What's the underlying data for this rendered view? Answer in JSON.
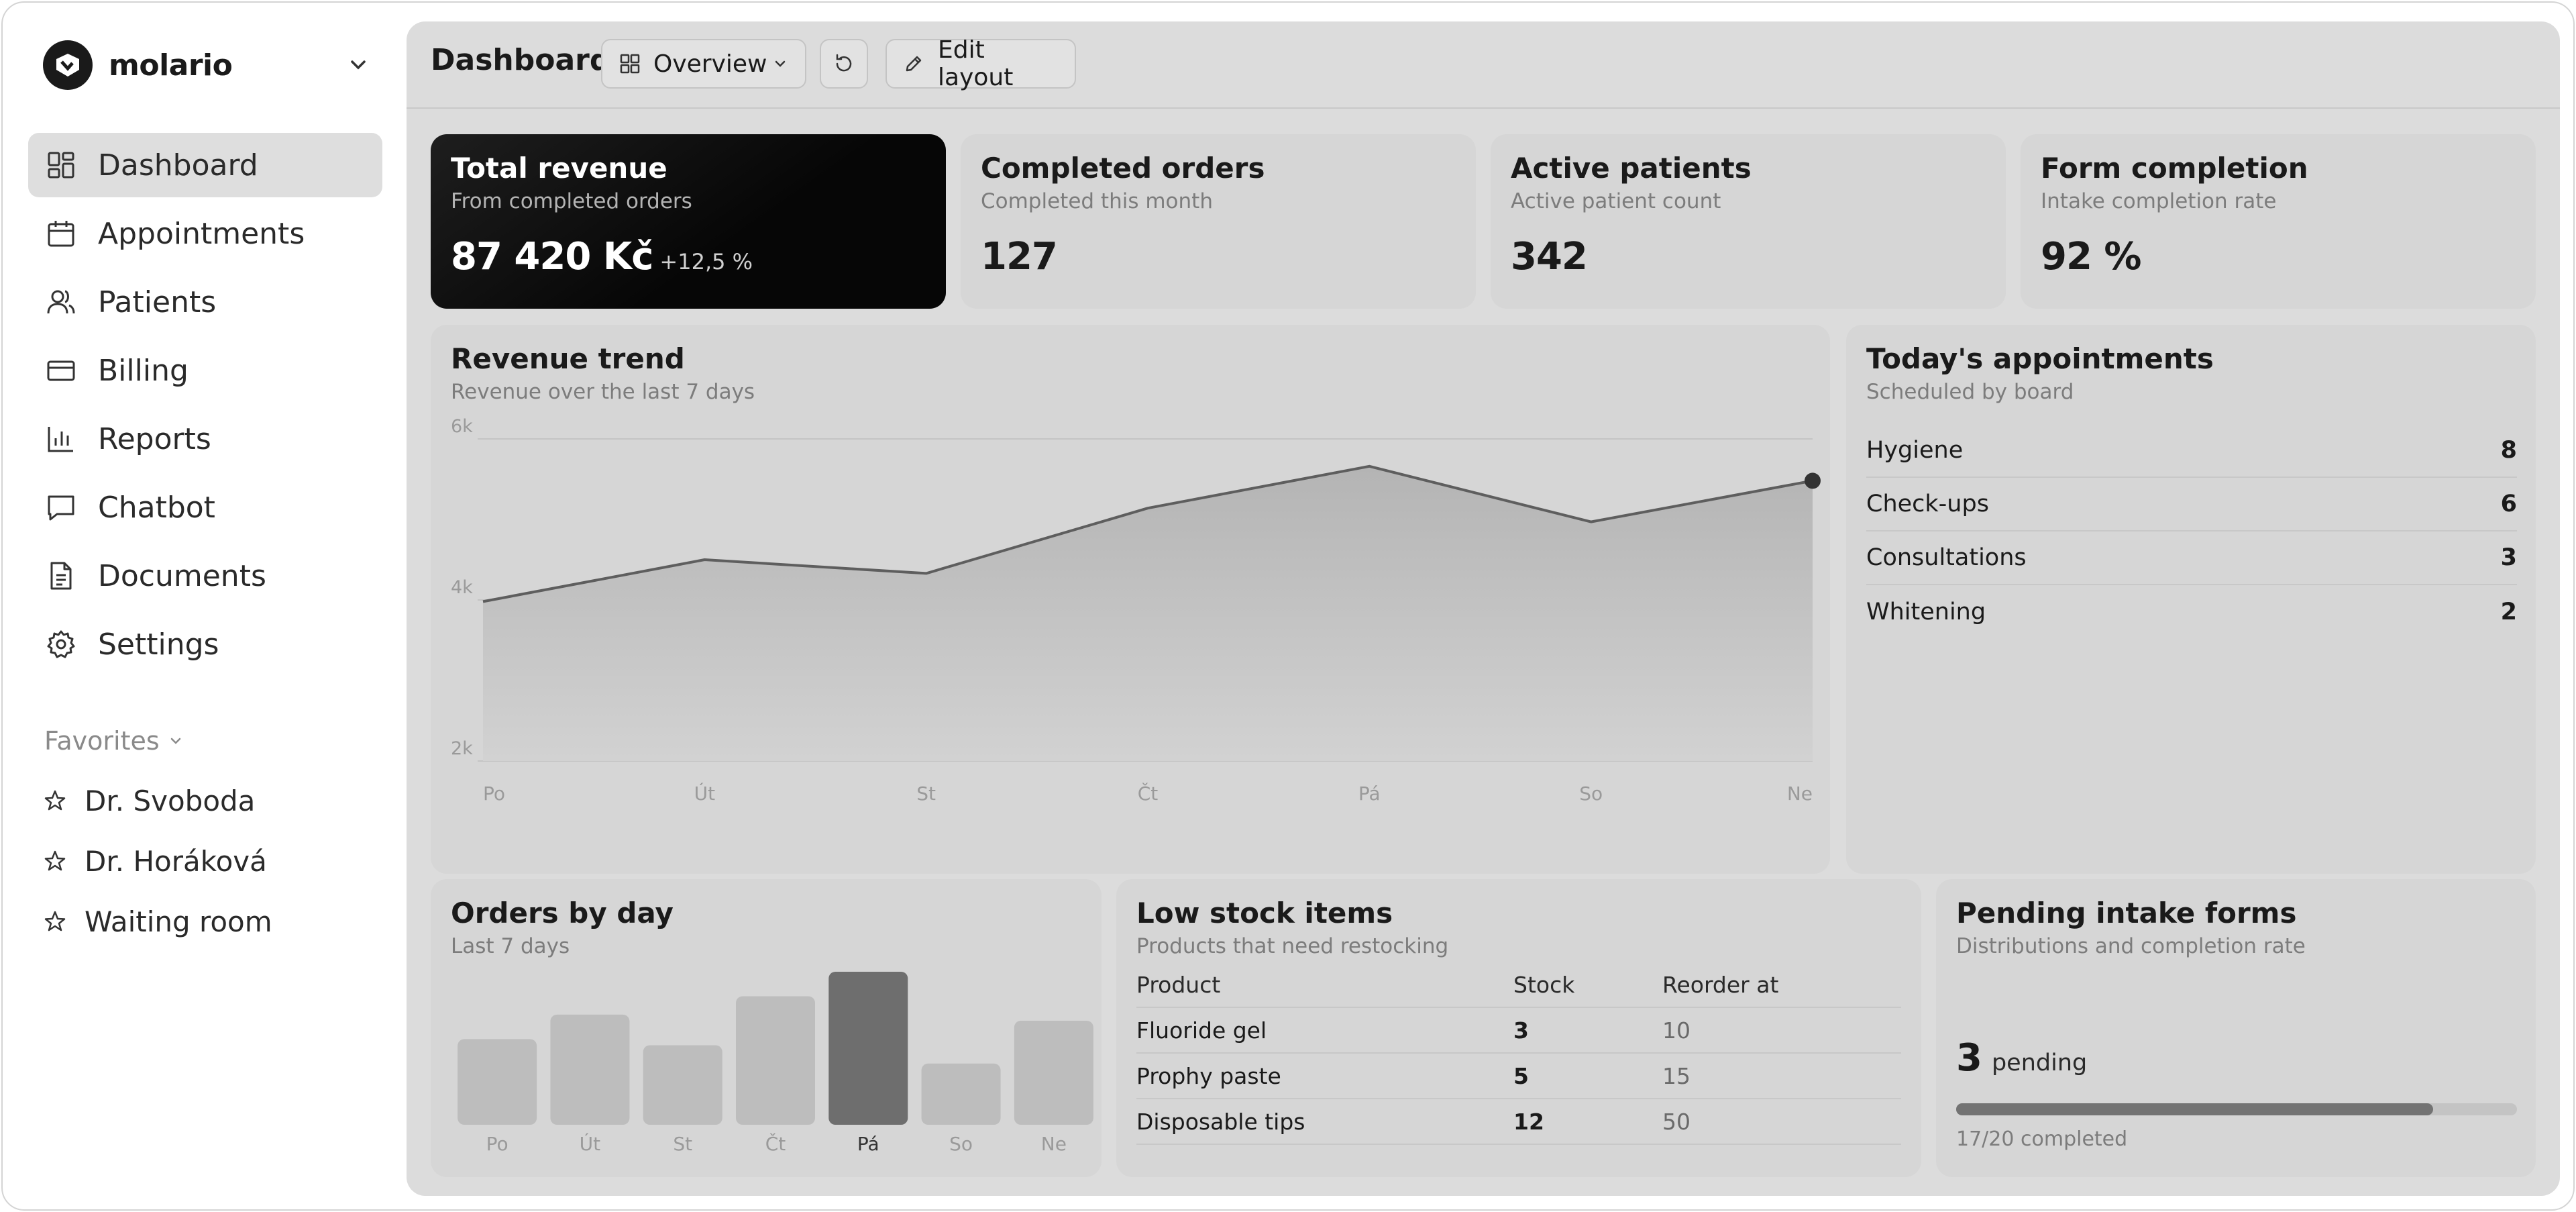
{
  "app": {
    "name": "molario"
  },
  "sidebar": {
    "items": [
      {
        "label": "Dashboard",
        "icon": "dashboard-icon",
        "active": true
      },
      {
        "label": "Appointments",
        "icon": "calendar-icon"
      },
      {
        "label": "Patients",
        "icon": "users-icon"
      },
      {
        "label": "Billing",
        "icon": "credit-card-icon"
      },
      {
        "label": "Reports",
        "icon": "bar-chart-icon"
      },
      {
        "label": "Chatbot",
        "icon": "chat-bubble-icon"
      },
      {
        "label": "Documents",
        "icon": "document-icon"
      },
      {
        "label": "Settings",
        "icon": "gear-icon"
      }
    ],
    "favorites_title": "Favorites",
    "favorites": [
      {
        "label": "Dr. Svoboda",
        "icon": "star-icon"
      },
      {
        "label": "Dr. Horáková",
        "icon": "star-icon"
      },
      {
        "label": "Waiting room",
        "icon": "star-icon"
      }
    ]
  },
  "topbar": {
    "title": "Dashboard",
    "view_label": "Overview",
    "edit_label": "Edit layout"
  },
  "stats": [
    {
      "title": "Total revenue",
      "subtitle": "From completed orders",
      "value": "87 420 Kč",
      "delta": "+12,5 %"
    },
    {
      "title": "Completed orders",
      "subtitle": "Completed this month",
      "value": "127"
    },
    {
      "title": "Active patients",
      "subtitle": "Active patient count",
      "value": "342"
    },
    {
      "title": "Form completion",
      "subtitle": "Intake completion rate",
      "value": "92 %"
    }
  ],
  "revenue_trend": {
    "title": "Revenue trend",
    "subtitle": "Revenue over the last 7 days"
  },
  "appointments": {
    "title": "Today's appointments",
    "subtitle": "Scheduled by board",
    "rows": [
      {
        "label": "Hygiene",
        "count": "8"
      },
      {
        "label": "Check-ups",
        "count": "6"
      },
      {
        "label": "Consultations",
        "count": "3"
      },
      {
        "label": "Whitening",
        "count": "2"
      }
    ]
  },
  "orders_by_day": {
    "title": "Orders by day",
    "subtitle": "Last 7 days"
  },
  "low_stock": {
    "title": "Low stock items",
    "subtitle": "Products that need restocking",
    "columns": [
      "Product",
      "Stock",
      "Reorder at"
    ],
    "rows": [
      [
        "Fluoride gel",
        "3",
        "10"
      ],
      [
        "Prophy paste",
        "5",
        "15"
      ],
      [
        "Disposable tips",
        "12",
        "50"
      ]
    ]
  },
  "intake": {
    "title": "Pending intake forms",
    "subtitle": "Distributions and completion rate",
    "count": "3",
    "count_label": "pending",
    "progress_text": "17/20 completed",
    "progress": 0.85
  },
  "chart_data": [
    {
      "type": "area",
      "x": [
        "Po",
        "Út",
        "St",
        "Čt",
        "Pá",
        "So",
        "Ne"
      ],
      "y": [
        3980,
        4500,
        4330,
        5140,
        5660,
        4970,
        5480
      ],
      "yticks": [
        {
          "v": 2000,
          "label": "2k"
        },
        {
          "v": 4000,
          "label": "4k"
        },
        {
          "v": 6000,
          "label": "6k"
        }
      ],
      "ylim": [
        2000,
        6000
      ],
      "grid": true
    },
    {
      "type": "bar",
      "categories": [
        "Po",
        "Út",
        "St",
        "Čt",
        "Pá",
        "So",
        "Ne"
      ],
      "values": [
        14,
        18,
        13,
        21,
        25,
        10,
        17
      ],
      "highlight": "Pá",
      "colors": {
        "bar": "#bdbdbd",
        "highlight": "#6e6e6e"
      }
    }
  ],
  "colors": {
    "accent": "#0b0b0b",
    "panel": "#d6d6d6",
    "background": "#dcdcdc"
  }
}
